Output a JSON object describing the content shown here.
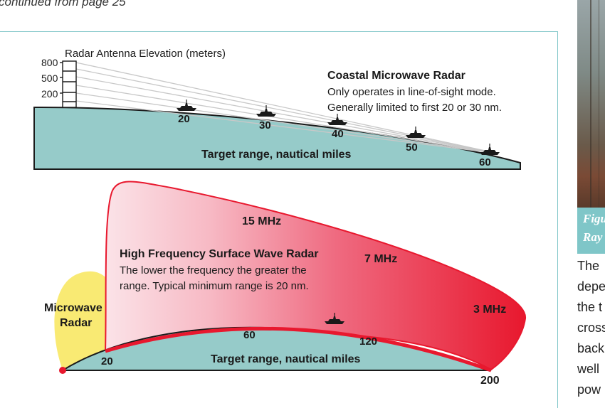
{
  "page": {
    "continued": "continued from page 25"
  },
  "coastal": {
    "antenna_label": "Radar Antenna Elevation (meters)",
    "elevations": [
      "800",
      "500",
      "200"
    ],
    "title": "Coastal Microwave Radar",
    "desc1": "Only operates in line-of-sight mode.",
    "desc2": "Generally limited to first 20 or 30 nm.",
    "ranges": [
      "20",
      "30",
      "40",
      "50",
      "60"
    ],
    "axis_label": "Target range, nautical miles"
  },
  "hf": {
    "title": "High Frequency Surface Wave Radar",
    "desc1": "The lower the frequency the greater the",
    "desc2": "range. Typical minimum range is 20 nm.",
    "freq_15": "15 MHz",
    "freq_7": "7 MHz",
    "freq_3": "3 MHz",
    "microwave_1": "Microwave",
    "microwave_2": "Radar",
    "ranges": [
      "20",
      "60",
      "120",
      "200"
    ],
    "axis_label": "Target range, nautical miles"
  },
  "sidebar": {
    "caption1": "Figure",
    "caption2": "Ray",
    "lines": [
      "The",
      "depe",
      "the t",
      "cross",
      "back",
      "well",
      "pow"
    ]
  },
  "colors": {
    "sea": "#96cbc9",
    "accent": "#7fc6c8",
    "red": "#e8182e",
    "yellow": "#f8e65a"
  }
}
